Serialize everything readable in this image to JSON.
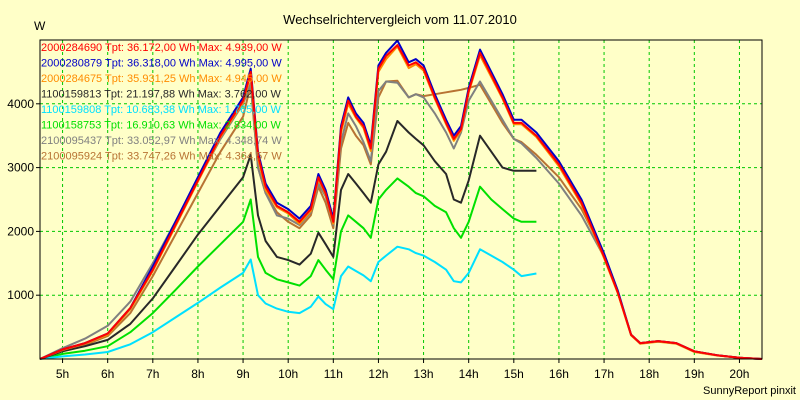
{
  "chart_data": {
    "type": "line",
    "title": "Wechselrichtervergleich vom 11.07.2010",
    "ylabel": "W",
    "xlabel": "",
    "ylim": [
      0,
      5000
    ],
    "xlim": [
      4.5,
      20.5
    ],
    "yticks": [
      1000,
      2000,
      3000,
      4000
    ],
    "xticks": [
      5,
      6,
      7,
      8,
      9,
      10,
      11,
      12,
      13,
      14,
      15,
      16,
      17,
      18,
      19,
      20
    ],
    "xtick_labels": [
      "5h",
      "6h",
      "7h",
      "8h",
      "9h",
      "10h",
      "11h",
      "12h",
      "13h",
      "14h",
      "15h",
      "16h",
      "17h",
      "18h",
      "19h",
      "20h"
    ],
    "grid": true,
    "legend_position": "top-left",
    "footer": "SunnyReport pinxit",
    "series": [
      {
        "name": "2000284690",
        "legend": "2000284690 Tpt: 36.172,00 Wh Max: 4.939,00 W",
        "color": "#ff0000",
        "x": [
          4.5,
          5,
          5.5,
          6,
          6.5,
          7,
          7.5,
          8,
          8.5,
          9,
          9.17,
          9.33,
          9.5,
          9.75,
          10,
          10.25,
          10.5,
          10.67,
          10.83,
          11,
          11.17,
          11.33,
          11.5,
          11.67,
          11.83,
          12,
          12.17,
          12.42,
          12.67,
          12.83,
          13,
          13.25,
          13.5,
          13.67,
          13.83,
          14,
          14.25,
          14.5,
          14.75,
          15,
          15.17,
          15.5,
          16,
          16.5,
          17,
          17.3,
          17.6,
          17.8,
          18.2,
          18.6,
          19,
          19.5,
          20,
          20.5
        ],
        "y": [
          0,
          150,
          250,
          400,
          800,
          1400,
          2100,
          2800,
          3500,
          4050,
          4500,
          3200,
          2700,
          2400,
          2300,
          2150,
          2350,
          2850,
          2600,
          2150,
          3600,
          4050,
          3800,
          3650,
          3300,
          4550,
          4750,
          4920,
          4600,
          4650,
          4550,
          4100,
          3700,
          3450,
          3600,
          4200,
          4800,
          4450,
          4100,
          3700,
          3700,
          3500,
          3050,
          2450,
          1600,
          1050,
          380,
          250,
          280,
          250,
          120,
          60,
          20,
          0
        ]
      },
      {
        "name": "2000280879",
        "legend": "2000280879 Tpt: 36.318,00 Wh Max: 4.995,00 W",
        "color": "#0000c8",
        "x": [
          4.5,
          5,
          5.5,
          6,
          6.5,
          7,
          7.5,
          8,
          8.5,
          9,
          9.17,
          9.33,
          9.5,
          9.75,
          10,
          10.25,
          10.5,
          10.67,
          10.83,
          11,
          11.17,
          11.33,
          11.5,
          11.67,
          11.83,
          12,
          12.17,
          12.42,
          12.67,
          12.83,
          13,
          13.25,
          13.5,
          13.67,
          13.83,
          14,
          14.25,
          14.5,
          14.75,
          15,
          15.17,
          15.5,
          16,
          16.5,
          17,
          17.3,
          17.6,
          17.8,
          18.2,
          18.6,
          19,
          19.5,
          20,
          20.5
        ],
        "y": [
          0,
          150,
          250,
          400,
          800,
          1450,
          2150,
          2850,
          3550,
          4100,
          4550,
          3250,
          2750,
          2450,
          2350,
          2200,
          2400,
          2900,
          2650,
          2200,
          3650,
          4100,
          3850,
          3700,
          3350,
          4600,
          4800,
          4990,
          4650,
          4700,
          4600,
          4150,
          3750,
          3500,
          3650,
          4250,
          4850,
          4500,
          4150,
          3750,
          3750,
          3550,
          3100,
          2500,
          1650,
          1080,
          380,
          250,
          280,
          250,
          120,
          60,
          20,
          0
        ]
      },
      {
        "name": "2000284675",
        "legend": "2000284675 Tpt: 35.931,25 Wh Max: 4.945,00 W",
        "color": "#ff8c00",
        "x": [
          4.5,
          5,
          5.5,
          6,
          6.5,
          7,
          7.5,
          8,
          8.5,
          9,
          9.17,
          9.33,
          9.5,
          9.75,
          10,
          10.25,
          10.5,
          10.67,
          10.83,
          11,
          11.17,
          11.33,
          11.5,
          11.67,
          11.83,
          12,
          12.17,
          12.42,
          12.67,
          12.83,
          13,
          13.25,
          13.5,
          13.67,
          13.83,
          14,
          14.25,
          14.5,
          14.75,
          15,
          15.17,
          15.5,
          16,
          16.5,
          17,
          17.3,
          17.6,
          17.8,
          18.2,
          18.6,
          19,
          19.5,
          20,
          20.5
        ],
        "y": [
          0,
          140,
          240,
          380,
          780,
          1380,
          2080,
          2780,
          3480,
          4020,
          4450,
          3150,
          2650,
          2380,
          2280,
          2120,
          2320,
          2820,
          2580,
          2120,
          3550,
          4000,
          3780,
          3620,
          3260,
          4500,
          4700,
          4900,
          4560,
          4620,
          4520,
          4080,
          3680,
          3420,
          3580,
          4180,
          4760,
          4420,
          4080,
          3680,
          3680,
          3480,
          3020,
          2420,
          1580,
          1040,
          370,
          240,
          270,
          240,
          110,
          55,
          20,
          0
        ]
      },
      {
        "name": "1100159813",
        "legend": "1100159813 Tpt: 21.197,88 Wh Max: 3.762,00 W",
        "color": "#282828",
        "x": [
          4.5,
          5,
          5.5,
          6,
          6.5,
          7,
          7.5,
          8,
          8.5,
          9,
          9.17,
          9.33,
          9.5,
          9.75,
          10,
          10.25,
          10.5,
          10.67,
          10.83,
          11,
          11.17,
          11.33,
          11.5,
          11.67,
          11.83,
          12,
          12.17,
          12.42,
          12.67,
          12.83,
          13,
          13.25,
          13.5,
          13.67,
          13.83,
          14,
          14.25,
          14.5,
          14.75,
          15,
          15.17,
          15.5
        ],
        "y": [
          0,
          120,
          200,
          300,
          550,
          950,
          1450,
          1950,
          2400,
          2850,
          3200,
          2250,
          1850,
          1600,
          1550,
          1480,
          1650,
          1980,
          1800,
          1600,
          2650,
          2900,
          2750,
          2600,
          2450,
          3050,
          3250,
          3730,
          3550,
          3450,
          3350,
          3100,
          2900,
          2500,
          2450,
          2800,
          3500,
          3250,
          3000,
          2950,
          2950,
          2950
        ]
      },
      {
        "name": "1100159808",
        "legend": "1100159808 Tpt: 10.683,38 Wh Max: 1.765,00 W",
        "color": "#00e0ff",
        "x": [
          4.5,
          5,
          5.5,
          6,
          6.5,
          7,
          7.5,
          8,
          8.5,
          9,
          9.17,
          9.33,
          9.5,
          9.75,
          10,
          10.25,
          10.5,
          10.67,
          10.83,
          11,
          11.17,
          11.33,
          11.5,
          11.67,
          11.83,
          12,
          12.17,
          12.42,
          12.67,
          12.83,
          13,
          13.25,
          13.5,
          13.67,
          13.83,
          14,
          14.25,
          14.5,
          14.75,
          15,
          15.17,
          15.5
        ],
        "y": [
          0,
          40,
          70,
          110,
          230,
          420,
          650,
          880,
          1120,
          1350,
          1560,
          1000,
          870,
          790,
          740,
          720,
          820,
          980,
          860,
          780,
          1300,
          1450,
          1380,
          1310,
          1220,
          1520,
          1620,
          1760,
          1720,
          1660,
          1620,
          1520,
          1400,
          1220,
          1200,
          1350,
          1720,
          1620,
          1520,
          1400,
          1300,
          1340
        ]
      },
      {
        "name": "1100158753",
        "legend": "1100158753 Tpt: 16.910,63 Wh Max: 2.834,00 W",
        "color": "#00e000",
        "x": [
          4.5,
          5,
          5.5,
          6,
          6.5,
          7,
          7.5,
          8,
          8.5,
          9,
          9.17,
          9.33,
          9.5,
          9.75,
          10,
          10.25,
          10.5,
          10.67,
          10.83,
          11,
          11.17,
          11.33,
          11.5,
          11.67,
          11.83,
          12,
          12.17,
          12.42,
          12.67,
          12.83,
          13,
          13.25,
          13.5,
          13.67,
          13.83,
          14,
          14.25,
          14.5,
          14.75,
          15,
          15.17,
          15.5
        ],
        "y": [
          0,
          80,
          130,
          200,
          420,
          720,
          1080,
          1450,
          1800,
          2150,
          2500,
          1600,
          1350,
          1250,
          1200,
          1150,
          1300,
          1550,
          1400,
          1250,
          2000,
          2250,
          2150,
          2050,
          1900,
          2500,
          2650,
          2830,
          2700,
          2600,
          2550,
          2400,
          2300,
          2050,
          1900,
          2150,
          2700,
          2500,
          2350,
          2200,
          2150,
          2150
        ]
      },
      {
        "name": "2100095437",
        "legend": "2100095437 Tpt: 33.052,97 Wh Max: 4.348,74 W",
        "color": "#808080",
        "x": [
          4.5,
          5,
          5.5,
          6,
          6.5,
          7,
          7.5,
          8,
          8.5,
          9,
          9.17,
          9.33,
          9.5,
          9.75,
          10,
          10.25,
          10.5,
          10.67,
          10.83,
          11,
          11.17,
          11.33,
          11.5,
          11.67,
          11.83,
          12,
          12.17,
          12.42,
          12.67,
          12.83,
          13,
          13.25,
          13.5,
          13.67,
          13.83,
          14,
          14.25,
          14.5,
          14.75,
          15,
          15.17,
          15.5,
          16,
          16.5,
          17,
          17.3,
          17.6,
          17.8,
          18.2,
          18.6,
          19,
          19.5,
          20,
          20.5
        ],
        "y": [
          0,
          170,
          320,
          520,
          900,
          1500,
          2150,
          2800,
          3450,
          4000,
          4320,
          3000,
          2600,
          2250,
          2200,
          2100,
          2300,
          2750,
          2550,
          2100,
          3400,
          3850,
          3650,
          3400,
          3100,
          4200,
          4350,
          4330,
          4100,
          4150,
          4100,
          3850,
          3550,
          3300,
          3550,
          4050,
          4350,
          4050,
          3750,
          3450,
          3380,
          3150,
          2750,
          2250,
          1600,
          1050,
          380,
          250,
          280,
          250,
          120,
          60,
          20,
          0
        ]
      },
      {
        "name": "2100095924",
        "legend": "2100095924 Tpt: 33.747,26 Wh Max: 4.364,57 W",
        "color": "#b87333",
        "x": [
          4.5,
          5,
          5.5,
          6,
          6.5,
          7,
          7.5,
          8,
          8.5,
          9,
          9.17,
          9.33,
          9.5,
          9.75,
          10,
          10.25,
          10.5,
          10.67,
          10.83,
          11,
          11.17,
          11.33,
          11.5,
          11.67,
          11.83,
          12,
          12.17,
          12.42,
          12.67,
          12.83,
          13,
          13.25,
          13.5,
          13.67,
          13.83,
          14,
          14.25,
          14.5,
          14.75,
          15,
          15.17,
          15.5,
          16,
          16.5,
          17,
          17.3,
          17.6,
          17.8,
          18.2,
          18.6,
          19,
          19.5,
          20,
          20.5
        ],
        "y": [
          0,
          130,
          220,
          360,
          720,
          1300,
          1950,
          2600,
          3250,
          3800,
          4300,
          3000,
          2600,
          2300,
          2150,
          2050,
          2250,
          2700,
          2450,
          2050,
          3300,
          3700,
          3500,
          3350,
          3050,
          4100,
          4350,
          4360,
          4100,
          4150,
          4120,
          4150,
          4180,
          4200,
          4220,
          4250,
          4300,
          4000,
          3700,
          3450,
          3400,
          3200,
          2850,
          2350,
          1650,
          1050,
          380,
          250,
          280,
          250,
          120,
          60,
          20,
          0
        ]
      }
    ]
  }
}
